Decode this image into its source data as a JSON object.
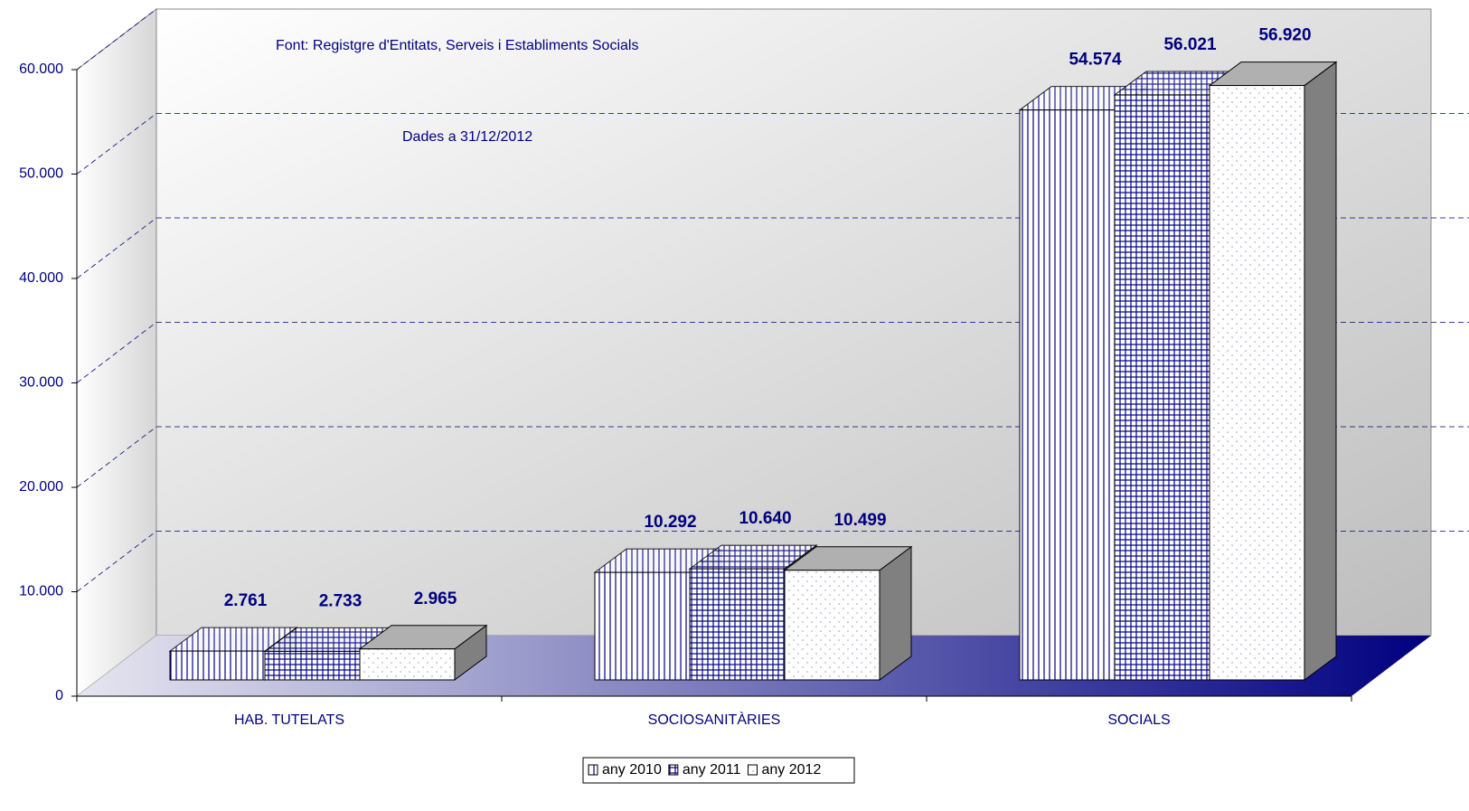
{
  "chart_data": {
    "type": "bar3d",
    "annotations": [
      "Font: Registgre d'Entitats, Serveis i Establiments Socials",
      "Dades a 31/12/2012"
    ],
    "categories": [
      "HAB. TUTELATS",
      "SOCIOSANITÀRIES",
      "SOCIALS"
    ],
    "series": [
      {
        "name": "any 2010",
        "color": "#000080",
        "values": [
          2761,
          10292,
          54574
        ],
        "value_labels": [
          "2.761",
          "10.292",
          "54.574"
        ]
      },
      {
        "name": "any 2011",
        "color": "#000080",
        "values": [
          2733,
          10640,
          56021
        ],
        "value_labels": [
          "2.733",
          "10.640",
          "56.021"
        ]
      },
      {
        "name": "any 2012",
        "color": "#9999cc",
        "values": [
          2965,
          10499,
          56920
        ],
        "value_labels": [
          "2.965",
          "10.499",
          "56.920"
        ]
      }
    ],
    "ylim": [
      0,
      60000
    ],
    "yticks": [
      0,
      {
        "value": 10000,
        "label": "10.000"
      },
      {
        "value": 20000,
        "label": "20.000"
      },
      {
        "value": 30000,
        "label": "30.000"
      },
      {
        "value": 40000,
        "label": "40.000"
      },
      {
        "value": 50000,
        "label": "50.000"
      },
      {
        "value": 60000,
        "label": "60.000"
      }
    ],
    "grid": true
  }
}
